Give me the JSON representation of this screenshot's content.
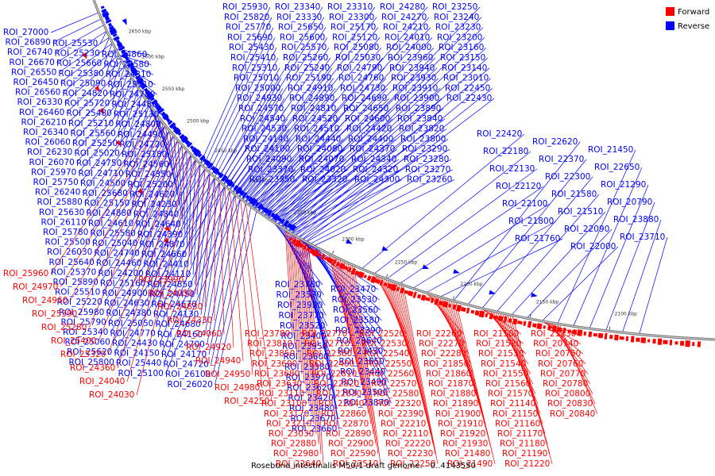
{
  "caption": "Roseburia intestinalis M50/1 draft genome. - 0..4143550",
  "legend": [
    {
      "label": "Forward",
      "color": "#ff0000"
    },
    {
      "label": "Reverse",
      "color": "#0000ff"
    }
  ],
  "ticks": [
    "2650 kbp",
    "2600 kbp",
    "2550 kbp",
    "2500 kbp",
    "2450 kbp",
    "2400 kbp",
    "2350 kbp",
    "2300 kbp",
    "2250 kbp",
    "2200 kbp",
    "2150 kbp",
    "2100 kbp"
  ],
  "reverse_labels": [
    "ROI_27000",
    "ROI_26890",
    "ROI_26740",
    "ROI_26670",
    "ROI_26550",
    "ROI_26450",
    "ROI_26560",
    "ROI_26330",
    "ROI_26460",
    "ROI_26210",
    "ROI_26340",
    "ROI_26060",
    "ROI_26230",
    "ROI_26070",
    "ROI_25970",
    "ROI_25750",
    "ROI_26240",
    "ROI_25880",
    "ROI_25630",
    "ROI_26110",
    "ROI_25780",
    "ROI_25500",
    "ROI_26030",
    "ROI_25640",
    "ROI_25370",
    "ROI_25890",
    "ROI_25510",
    "ROI_25220",
    "ROI_25980",
    "ROI_25790",
    "ROI_25340",
    "ROI_25060",
    "ROI_25620",
    "ROI_25800",
    "ROI_25530",
    "ROI_25230",
    "ROI_25660",
    "ROI_25380",
    "ROI_25090",
    "ROI_24820",
    "ROI_25720",
    "ROI_25480",
    "ROI_25210",
    "ROI_25560",
    "ROI_25250",
    "ROI_25020",
    "ROI_24750",
    "ROI_24710",
    "ROI_24500",
    "ROI_25680",
    "ROI_25150",
    "ROI_24880",
    "ROI_24610",
    "ROI_25580",
    "ROI_25040",
    "ROI_24740",
    "ROI_24460",
    "ROI_24200",
    "ROI_25160",
    "ROI_24900",
    "ROI_24630",
    "ROI_24380",
    "ROI_25050",
    "ROI_24770",
    "ROI_24430",
    "ROI_24150",
    "ROI_25440",
    "ROI_25100",
    "ROI_24860",
    "ROI_24580",
    "ROI_24310",
    "ROI_25110",
    "ROI_24780",
    "ROI_24480",
    "ROI_25130",
    "ROI_24800",
    "ROI_24490",
    "ROI_24220",
    "ROI_25180",
    "ROI_24560",
    "ROI_24350",
    "ROI_25200",
    "ROI_24620",
    "ROI_24230",
    "ROI_24840",
    "ROI_24640",
    "ROI_24390",
    "ROI_24870",
    "ROI_24660",
    "ROI_24410",
    "ROI_24110",
    "ROI_24850",
    "ROI_24450",
    "ROI_24670",
    "ROI_24130",
    "ROI_24680",
    "ROI_24160",
    "ROI_24700",
    "ROI_24170",
    "ROI_24720",
    "ROI_26100",
    "ROI_26020",
    "ROI_25930",
    "ROI_25820",
    "ROI_25770",
    "ROI_25690",
    "ROI_25430",
    "ROI_25410",
    "ROI_25310",
    "ROI_25010",
    "ROI_25000",
    "ROI_24930",
    "ROI_24570",
    "ROI_24540",
    "ROI_24530",
    "ROI_24140",
    "ROI_24100",
    "ROI_24090",
    "ROI_23370",
    "ROI_23350",
    "ROI_23340",
    "ROI_23330",
    "ROI_25650",
    "ROI_25600",
    "ROI_25570",
    "ROI_25260",
    "ROI_25240",
    "ROI_25190",
    "ROI_24910",
    "ROI_24890",
    "ROI_24810",
    "ROI_24520",
    "ROI_24510",
    "ROI_24440",
    "ROI_24080",
    "ROI_24070",
    "ROI_24020",
    "ROI_23320",
    "ROI_23310",
    "ROI_23300",
    "ROI_25170",
    "ROI_25120",
    "ROI_25080",
    "ROI_25030",
    "ROI_24790",
    "ROI_24760",
    "ROI_24730",
    "ROI_24690",
    "ROI_24650",
    "ROI_24600",
    "ROI_24420",
    "ROI_24400",
    "ROI_24370",
    "ROI_24340",
    "ROI_24320",
    "ROI_24300",
    "ROI_24280",
    "ROI_24270",
    "ROI_24210",
    "ROI_24010",
    "ROI_24000",
    "ROI_23960",
    "ROI_23940",
    "ROI_23930",
    "ROI_23910",
    "ROI_23900",
    "ROI_23890",
    "ROI_23840",
    "ROI_23820",
    "ROI_23800",
    "ROI_23290",
    "ROI_23280",
    "ROI_23270",
    "ROI_23260",
    "ROI_23250",
    "ROI_23240",
    "ROI_23230",
    "ROI_23200",
    "ROI_23160",
    "ROI_23150",
    "ROI_23140",
    "ROI_23010",
    "ROI_22450",
    "ROI_22430",
    "ROI_22420",
    "ROI_22180",
    "ROI_22130",
    "ROI_22120",
    "ROI_22100",
    "ROI_21800",
    "ROI_21760",
    "ROI_22620",
    "ROI_22370",
    "ROI_22300",
    "ROI_21580",
    "ROI_21510",
    "ROI_22090",
    "ROI_22000",
    "ROI_21450",
    "ROI_22650",
    "ROI_21290",
    "ROI_20790",
    "ROI_23880",
    "ROI_23710",
    "ROI_23760",
    "ROI_23570",
    "ROI_23920",
    "ROI_23770",
    "ROI_23520",
    "ROI_23400",
    "ROI_23950",
    "ROI_23600",
    "ROI_23380",
    "ROI_23970",
    "ROI_23620",
    "ROI_23420",
    "ROI_23480",
    "ROI_23670",
    "ROI_23660",
    "ROI_23470",
    "ROI_23530",
    "ROI_23560",
    "ROI_23580",
    "ROI_23390",
    "ROI_23640",
    "ROI_23430",
    "ROI_23650",
    "ROI_23440",
    "ROI_23490",
    "ROI_23500",
    "ROI_23870"
  ],
  "forward_labels": [
    "ROI_25960",
    "ROI_24970",
    "ROI_24960",
    "ROI_25390",
    "ROI_25280",
    "ROI_25400",
    "ROI_25320",
    "ROI_24360",
    "ROI_24040",
    "ROI_24030",
    "ROI_23990",
    "ROI_24050",
    "ROI_24830",
    "ROI_24330",
    "ROI_24060",
    "ROI_24920",
    "ROI_24940",
    "ROI_24950",
    "ROI_24980",
    "ROI_24250",
    "ROI_23780",
    "ROI_23810",
    "ROI_23850",
    "ROI_23690",
    "ROI_23680",
    "ROI_23630",
    "ROI_23110",
    "ROI_23100",
    "ROI_23170",
    "ROI_23210",
    "ROI_23030",
    "ROI_22880",
    "ROI_22980",
    "ROI_22640",
    "ROI_22770",
    "ROI_22710",
    "ROI_22380",
    "ROI_22400",
    "ROI_22810",
    "ROI_22820",
    "ROI_22830",
    "ROI_22840",
    "ROI_22860",
    "ROI_22870",
    "ROI_22890",
    "ROI_22900",
    "ROI_22590",
    "ROI_22510",
    "ROI_22520",
    "ROI_22530",
    "ROI_22540",
    "ROI_22550",
    "ROI_22560",
    "ROI_22570",
    "ROI_22580",
    "ROI_22320",
    "ROI_22390",
    "ROI_22210",
    "ROI_22110",
    "ROI_22220",
    "ROI_22230",
    "ROI_22250",
    "ROI_22260",
    "ROI_22270",
    "ROI_22280",
    "ROI_21850",
    "ROI_21860",
    "ROI_21870",
    "ROI_21880",
    "ROI_21890",
    "ROI_21900",
    "ROI_21910",
    "ROI_21920",
    "ROI_21930",
    "ROI_21480",
    "ROI_21490",
    "ROI_21500",
    "ROI_21520",
    "ROI_21530",
    "ROI_21540",
    "ROI_21550",
    "ROI_21560",
    "ROI_21570",
    "ROI_21140",
    "ROI_21150",
    "ROI_21160",
    "ROI_21170",
    "ROI_21180",
    "ROI_21190",
    "ROI_21220",
    "ROI_21230",
    "ROI_20740",
    "ROI_20750",
    "ROI_20760",
    "ROI_20770",
    "ROI_20780",
    "ROI_20800",
    "ROI_20830",
    "ROI_20840"
  ]
}
